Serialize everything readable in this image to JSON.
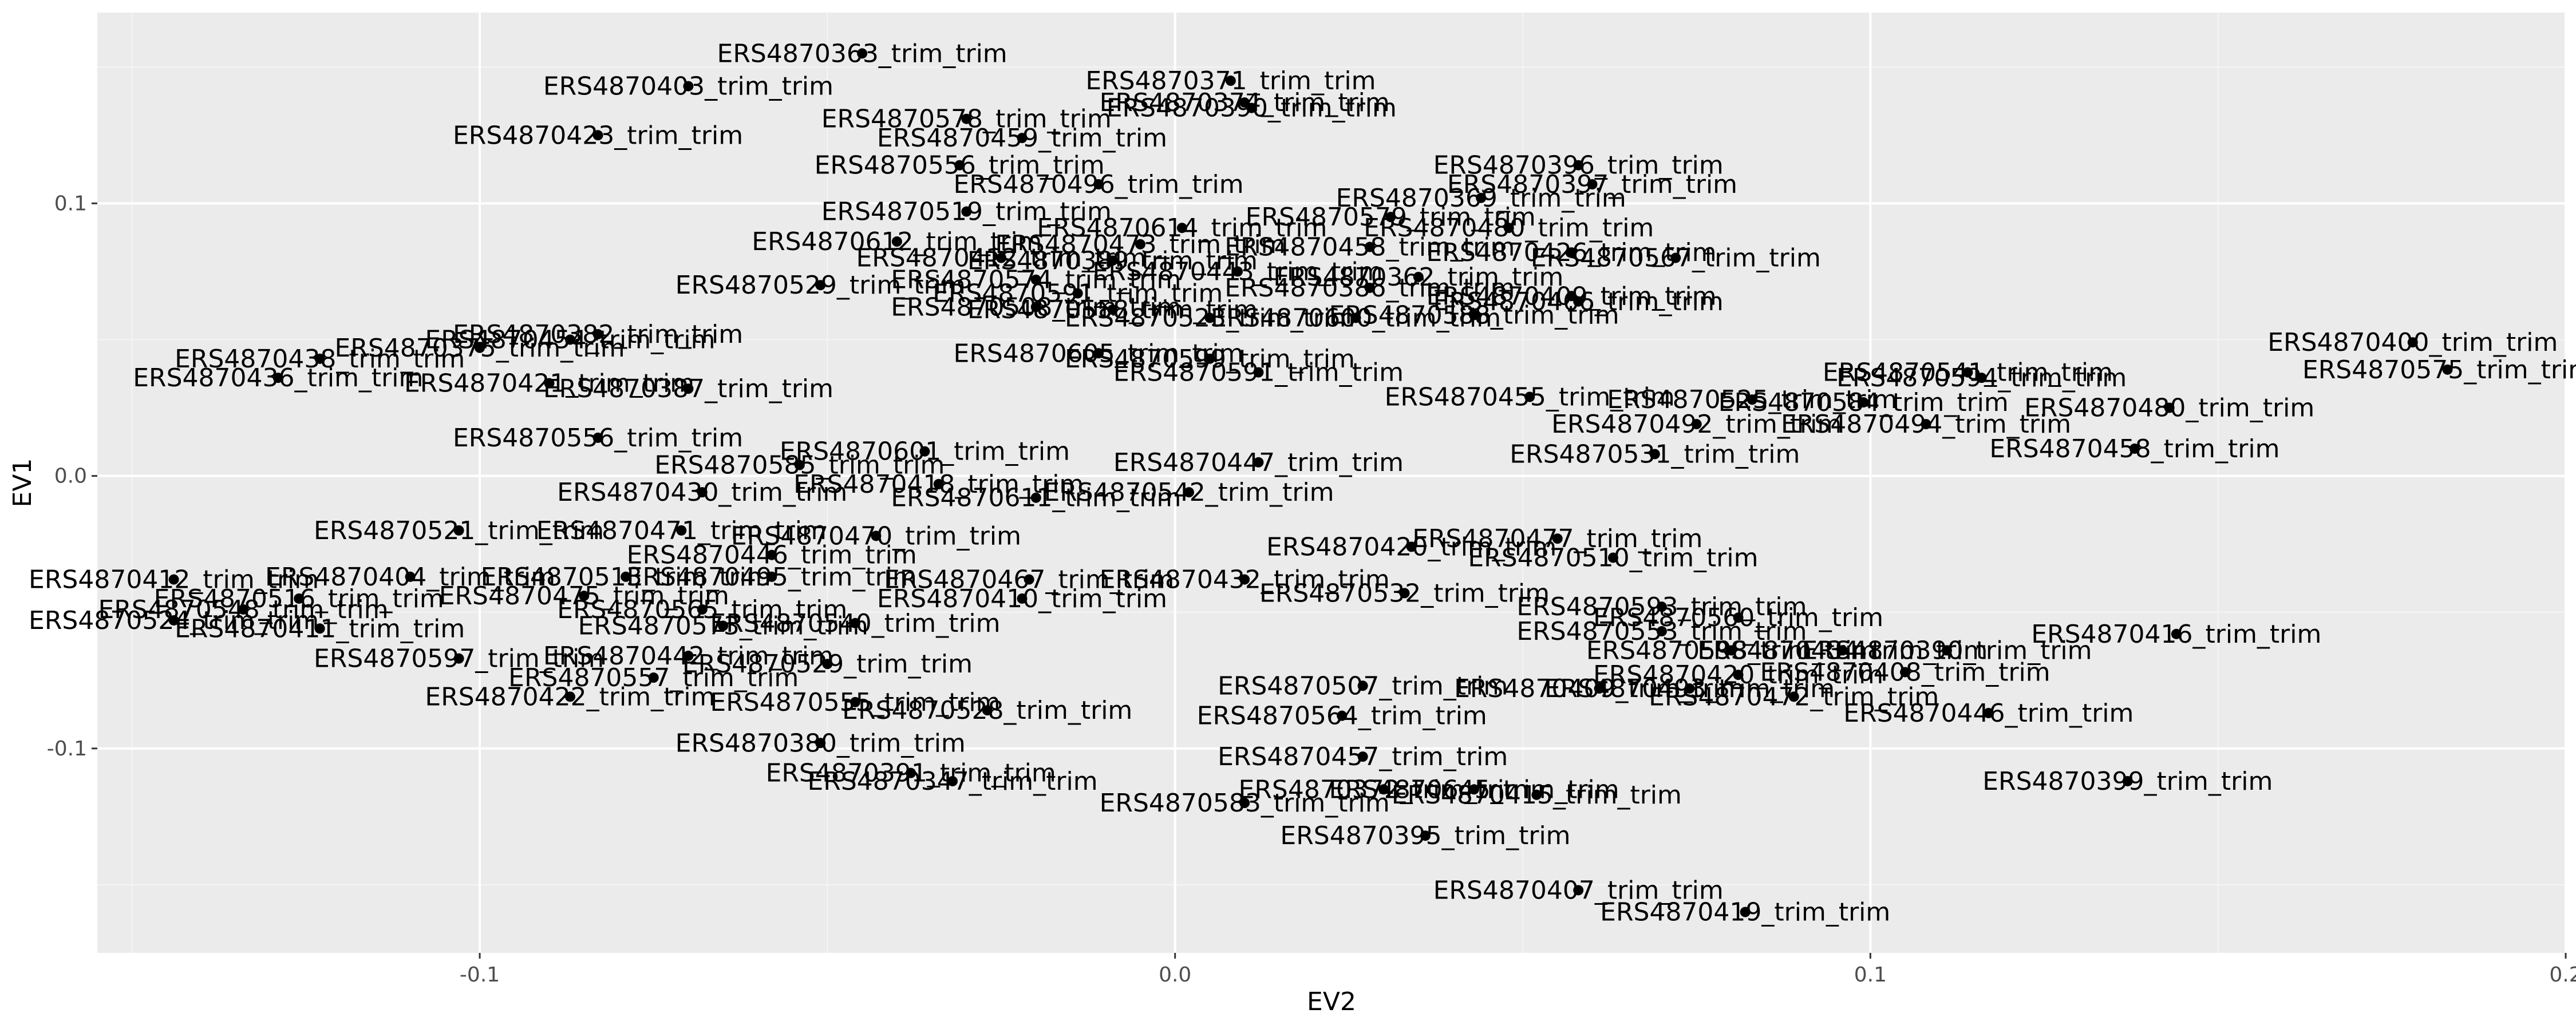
{
  "chart_data": {
    "type": "scatter",
    "title": "",
    "xlabel": "EV2",
    "ylabel": "EV1",
    "xlim": [
      -0.155,
      0.2
    ],
    "ylim": [
      -0.175,
      0.17
    ],
    "x_ticks": [
      {
        "value": -0.1,
        "label": "-0.1"
      },
      {
        "value": 0.0,
        "label": "0.0"
      },
      {
        "value": 0.1,
        "label": "0.1"
      },
      {
        "value": 0.2,
        "label": "0.2"
      }
    ],
    "y_ticks": [
      {
        "value": -0.1,
        "label": "-0.1"
      },
      {
        "value": 0.0,
        "label": "0.0"
      },
      {
        "value": 0.1,
        "label": "0.1"
      }
    ],
    "grid": true,
    "legend": "none",
    "colors": {
      "panel": "#ebebeb",
      "grid_major": "#ffffff",
      "grid_minor": "#f5f5f5",
      "point": "#000000"
    },
    "points": [
      {
        "label": "ERS4870363_trim_trim",
        "x": -0.045,
        "y": 0.155
      },
      {
        "label": "ERS4870403_trim_trim",
        "x": -0.07,
        "y": 0.143
      },
      {
        "label": "ERS4870371_trim_trim",
        "x": 0.008,
        "y": 0.145
      },
      {
        "label": "ERS4870374_trim_trim",
        "x": 0.01,
        "y": 0.137
      },
      {
        "label": "ERS4870390_trim_trim",
        "x": 0.011,
        "y": 0.135
      },
      {
        "label": "ERS4870578_trim_trim",
        "x": -0.03,
        "y": 0.131
      },
      {
        "label": "ERS4870423_trim_trim",
        "x": -0.083,
        "y": 0.125
      },
      {
        "label": "ERS4870459_trim_trim",
        "x": -0.022,
        "y": 0.124
      },
      {
        "label": "ERS4870556_trim_trim",
        "x": -0.031,
        "y": 0.114
      },
      {
        "label": "ERS4870496_trim_trim",
        "x": -0.011,
        "y": 0.107
      },
      {
        "label": "ERS4870396_trim_trim",
        "x": 0.058,
        "y": 0.114
      },
      {
        "label": "ERS4870397_trim_trim",
        "x": 0.06,
        "y": 0.107
      },
      {
        "label": "ERS4870369_trim_trim",
        "x": 0.044,
        "y": 0.102
      },
      {
        "label": "ERS4870519_trim_trim",
        "x": -0.03,
        "y": 0.097
      },
      {
        "label": "ERS4870614_trim_trim",
        "x": 0.001,
        "y": 0.091
      },
      {
        "label": "ERS4870579_trim_trim",
        "x": 0.031,
        "y": 0.095
      },
      {
        "label": "ERS4870480_trim_trim",
        "x": 0.048,
        "y": 0.091
      },
      {
        "label": "ERS4870612_trim_trim",
        "x": -0.04,
        "y": 0.086
      },
      {
        "label": "ERS4870473_trim_trim",
        "x": -0.005,
        "y": 0.085
      },
      {
        "label": "ERS4870458_trim_trim",
        "x": 0.028,
        "y": 0.084
      },
      {
        "label": "ERS4870426_trim_trim",
        "x": 0.057,
        "y": 0.082
      },
      {
        "label": "ERS4870412_trim_trim",
        "x": -0.025,
        "y": 0.08
      },
      {
        "label": "ERS4870389_trim_trim",
        "x": -0.009,
        "y": 0.079
      },
      {
        "label": "ERS4870567_trim_trim",
        "x": 0.072,
        "y": 0.08
      },
      {
        "label": "ERS4870443_trim_trim",
        "x": 0.009,
        "y": 0.075
      },
      {
        "label": "ERS4870362_trim_trim",
        "x": 0.035,
        "y": 0.073
      },
      {
        "label": "ERS4870574_trim_trim",
        "x": -0.02,
        "y": 0.072
      },
      {
        "label": "ERS4870529_trim_trim",
        "x": -0.051,
        "y": 0.07
      },
      {
        "label": "ERS4870386_trim_trim",
        "x": 0.028,
        "y": 0.069
      },
      {
        "label": "ERS4870591_trim_trim",
        "x": -0.014,
        "y": 0.067
      },
      {
        "label": "ERS4870409_trim_trim",
        "x": 0.057,
        "y": 0.066
      },
      {
        "label": "ERS4870466_trim_trim",
        "x": 0.058,
        "y": 0.064
      },
      {
        "label": "ERS4870508_trim_trim",
        "x": -0.02,
        "y": 0.062
      },
      {
        "label": "ERS4870558_trim_trim",
        "x": -0.009,
        "y": 0.061
      },
      {
        "label": "ERS4870523_trim_trim",
        "x": 0.005,
        "y": 0.058
      },
      {
        "label": "ERS4870600_trim_trim",
        "x": 0.026,
        "y": 0.058
      },
      {
        "label": "ERS4870588_trim_trim",
        "x": 0.043,
        "y": 0.059
      },
      {
        "label": "ERS4870382_trim_trim",
        "x": -0.083,
        "y": 0.052
      },
      {
        "label": "ERS4870454_trim_trim",
        "x": -0.087,
        "y": 0.05
      },
      {
        "label": "ERS4870375_trim_trim",
        "x": -0.1,
        "y": 0.047
      },
      {
        "label": "ERS4870438_trim_trim",
        "x": -0.123,
        "y": 0.043
      },
      {
        "label": "ERS4870400_trim_trim",
        "x": 0.178,
        "y": 0.049
      },
      {
        "label": "ERS4870605_trim_trim",
        "x": -0.011,
        "y": 0.045
      },
      {
        "label": "ERS4870599_trim_trim",
        "x": 0.005,
        "y": 0.043
      },
      {
        "label": "ERS4870575_trim_trim",
        "x": 0.183,
        "y": 0.039
      },
      {
        "label": "ERS4870541_trim_trim",
        "x": 0.114,
        "y": 0.038
      },
      {
        "label": "ERS4870594_trim_trim",
        "x": 0.116,
        "y": 0.036
      },
      {
        "label": "ERS4870591_trim_trim",
        "x": 0.012,
        "y": 0.038
      },
      {
        "label": "ERS4870436_trim_trim",
        "x": -0.129,
        "y": 0.036
      },
      {
        "label": "ERS4870421_trim_trim",
        "x": -0.09,
        "y": 0.034
      },
      {
        "label": "ERS4870387_trim_trim",
        "x": -0.07,
        "y": 0.032
      },
      {
        "label": "ERS4870455_trim_trim",
        "x": 0.051,
        "y": 0.029
      },
      {
        "label": "ERS4870525_trim_trim",
        "x": 0.083,
        "y": 0.028
      },
      {
        "label": "ERS4870584_trim_trim",
        "x": 0.099,
        "y": 0.027
      },
      {
        "label": "ERS4870480_trim_trim",
        "x": 0.143,
        "y": 0.025
      },
      {
        "label": "ERS4870492_trim_trim",
        "x": 0.075,
        "y": 0.019
      },
      {
        "label": "ERS4870494_trim_trim",
        "x": 0.108,
        "y": 0.019
      },
      {
        "label": "ERS4870556_trim_trim",
        "x": -0.083,
        "y": 0.014
      },
      {
        "label": "ERS4870458_trim_trim",
        "x": 0.138,
        "y": 0.01
      },
      {
        "label": "ERS4870531_trim_trim",
        "x": 0.069,
        "y": 0.008
      },
      {
        "label": "ERS4870447_trim_trim",
        "x": 0.012,
        "y": 0.005
      },
      {
        "label": "ERS4870601_trim_trim",
        "x": -0.036,
        "y": 0.009
      },
      {
        "label": "ERS4870585_trim_trim",
        "x": -0.054,
        "y": 0.004
      },
      {
        "label": "ERS4870430_trim_trim",
        "x": -0.068,
        "y": -0.006
      },
      {
        "label": "ERS4870418_trim_trim",
        "x": -0.034,
        "y": -0.003
      },
      {
        "label": "ERS4870611_trim_trim",
        "x": -0.02,
        "y": -0.008
      },
      {
        "label": "ERS4870542_trim_trim",
        "x": 0.002,
        "y": -0.006
      },
      {
        "label": "ERS4870521_trim_trim",
        "x": -0.103,
        "y": -0.02
      },
      {
        "label": "ERS4870471_trim_trim",
        "x": -0.071,
        "y": -0.02
      },
      {
        "label": "ERS4870470_trim_trim",
        "x": -0.043,
        "y": -0.022
      },
      {
        "label": "ERS4870446_trim_trim",
        "x": -0.058,
        "y": -0.029
      },
      {
        "label": "ERS4870477_trim_trim",
        "x": 0.055,
        "y": -0.023
      },
      {
        "label": "ERS4870420_trim_trim",
        "x": 0.034,
        "y": -0.026
      },
      {
        "label": "ERS4870510_trim_trim",
        "x": 0.063,
        "y": -0.03
      },
      {
        "label": "ERS4870412_trim_trim",
        "x": -0.144,
        "y": -0.038
      },
      {
        "label": "ERS4870404_trim_trim",
        "x": -0.11,
        "y": -0.037
      },
      {
        "label": "ERS4870513_trim_trim",
        "x": -0.079,
        "y": -0.037
      },
      {
        "label": "ERS4870495_trim_trim",
        "x": -0.058,
        "y": -0.037
      },
      {
        "label": "ERS4870467_trim_trim",
        "x": -0.021,
        "y": -0.038
      },
      {
        "label": "ERS4870432_trim_trim",
        "x": 0.01,
        "y": -0.038
      },
      {
        "label": "ERS4870532_trim_trim",
        "x": 0.033,
        "y": -0.043
      },
      {
        "label": "ERS4870410_trim_trim",
        "x": -0.022,
        "y": -0.045
      },
      {
        "label": "ERS4870516_trim_trim",
        "x": -0.126,
        "y": -0.045
      },
      {
        "label": "ERS4870548_trim_trim",
        "x": -0.134,
        "y": -0.049
      },
      {
        "label": "ERS4870475_trim_trim",
        "x": -0.085,
        "y": -0.044
      },
      {
        "label": "ERS4870565_trim_trim",
        "x": -0.068,
        "y": -0.049
      },
      {
        "label": "ERS4870593_trim_trim",
        "x": 0.07,
        "y": -0.048
      },
      {
        "label": "ERS4870560_trim_trim",
        "x": 0.081,
        "y": -0.052
      },
      {
        "label": "ERS4870524_trim_trim",
        "x": -0.144,
        "y": -0.053
      },
      {
        "label": "ERS4870411_trim_trim",
        "x": -0.123,
        "y": -0.056
      },
      {
        "label": "ERS4870573_trim_trim",
        "x": -0.065,
        "y": -0.055
      },
      {
        "label": "ERS4870540_trim_trim",
        "x": -0.046,
        "y": -0.054
      },
      {
        "label": "ERS4870553_trim_trim",
        "x": 0.07,
        "y": -0.057
      },
      {
        "label": "ERS4870416_trim_trim",
        "x": 0.144,
        "y": -0.058
      },
      {
        "label": "ERS4870598_trim_trim",
        "x": 0.08,
        "y": -0.064
      },
      {
        "label": "ERS4870434_trim_trim",
        "x": 0.096,
        "y": -0.064
      },
      {
        "label": "ERS4870390_trim_trim",
        "x": 0.111,
        "y": -0.064
      },
      {
        "label": "ERS4870597_trim_trim",
        "x": -0.103,
        "y": -0.067
      },
      {
        "label": "ERS4870442_trim_trim",
        "x": -0.07,
        "y": -0.066
      },
      {
        "label": "ERS4870529_trim_trim",
        "x": -0.05,
        "y": -0.069
      },
      {
        "label": "ERS4870408_trim_trim",
        "x": 0.105,
        "y": -0.072
      },
      {
        "label": "ERS4870420_trim_trim",
        "x": 0.081,
        "y": -0.073
      },
      {
        "label": "ERS4870557_trim_trim",
        "x": -0.075,
        "y": -0.074
      },
      {
        "label": "ERS4870507_trim_trim",
        "x": 0.027,
        "y": -0.077
      },
      {
        "label": "ERS4870409_trim_trim",
        "x": 0.061,
        "y": -0.078
      },
      {
        "label": "ERS4870493_trim_trim",
        "x": 0.074,
        "y": -0.078
      },
      {
        "label": "ERS4870472_trim_trim",
        "x": 0.089,
        "y": -0.081
      },
      {
        "label": "ERS4870422_trim_trim",
        "x": -0.087,
        "y": -0.081
      },
      {
        "label": "ERS4870555_trim_trim",
        "x": -0.046,
        "y": -0.083
      },
      {
        "label": "ERS4870528_trim_trim",
        "x": -0.027,
        "y": -0.086
      },
      {
        "label": "ERS4870446_trim_trim",
        "x": 0.117,
        "y": -0.087
      },
      {
        "label": "ERS4870564_trim_trim",
        "x": 0.024,
        "y": -0.088
      },
      {
        "label": "ERS4870380_trim_trim",
        "x": -0.051,
        "y": -0.098
      },
      {
        "label": "ERS4870391_trim_trim",
        "x": -0.038,
        "y": -0.109
      },
      {
        "label": "ERS4870347_trim_trim",
        "x": -0.032,
        "y": -0.112
      },
      {
        "label": "ERS4870457_trim_trim",
        "x": 0.027,
        "y": -0.103
      },
      {
        "label": "ERS4870399_trim_trim",
        "x": 0.137,
        "y": -0.112
      },
      {
        "label": "ERS4870372_trim_trim",
        "x": 0.03,
        "y": -0.115
      },
      {
        "label": "ERS4870645_trim_trim",
        "x": 0.043,
        "y": -0.115
      },
      {
        "label": "ERS4870583_trim_trim",
        "x": 0.01,
        "y": -0.12
      },
      {
        "label": "ERS4870415_trim_trim",
        "x": 0.052,
        "y": -0.117
      },
      {
        "label": "ERS4870395_trim_trim",
        "x": 0.036,
        "y": -0.132
      },
      {
        "label": "ERS4870407_trim_trim",
        "x": 0.058,
        "y": -0.152
      },
      {
        "label": "ERS4870419_trim_trim",
        "x": 0.082,
        "y": -0.16
      }
    ]
  }
}
